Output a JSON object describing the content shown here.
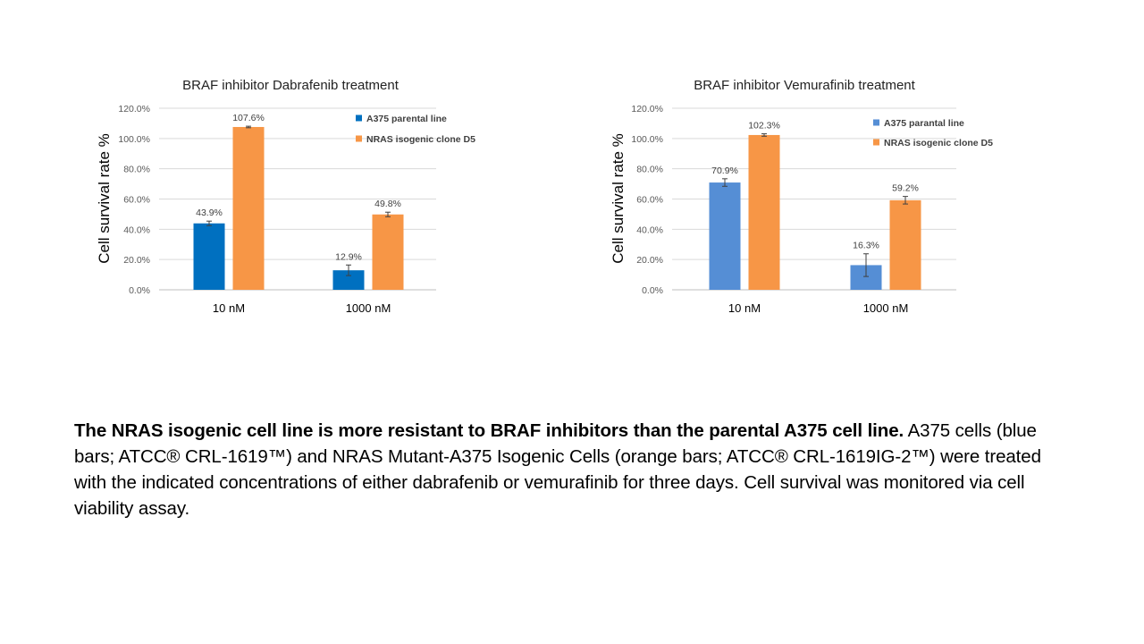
{
  "chart_data": [
    {
      "type": "bar",
      "title": "BRAF inhibitor Dabrafenib treatment",
      "ylabel": "Cell survival rate %",
      "xlabel": "",
      "categories": [
        "10 nM",
        "1000 nM"
      ],
      "ylim": [
        0,
        120
      ],
      "yticks": [
        "0.0%",
        "20.0%",
        "40.0%",
        "60.0%",
        "80.0%",
        "100.0%",
        "120.0%"
      ],
      "legend_position": "top-right",
      "grid": true,
      "series": [
        {
          "name": "A375 parental line",
          "color": "#0070C0",
          "values": [
            43.9,
            12.9
          ],
          "errors": [
            1.5,
            3.5
          ],
          "labels": [
            "43.9%",
            "12.9%"
          ]
        },
        {
          "name": "NRAS isogenic clone D5",
          "color": "#F79646",
          "values": [
            107.6,
            49.8
          ],
          "errors": [
            0.5,
            1.5
          ],
          "labels": [
            "107.6%",
            "49.8%"
          ]
        }
      ]
    },
    {
      "type": "bar",
      "title": "BRAF inhibitor Vemurafinib treatment",
      "ylabel": "Cell survival rate %",
      "xlabel": "",
      "categories": [
        "10 nM",
        "1000 nM"
      ],
      "ylim": [
        0,
        120
      ],
      "yticks": [
        "0.0%",
        "20.0%",
        "40.0%",
        "60.0%",
        "80.0%",
        "100.0%",
        "120.0%"
      ],
      "legend_position": "top-right",
      "grid": true,
      "series": [
        {
          "name": "A375 parantal line",
          "color": "#558ED5",
          "values": [
            70.9,
            16.3
          ],
          "errors": [
            2.5,
            7.5
          ],
          "labels": [
            "70.9%",
            "16.3%"
          ]
        },
        {
          "name": "NRAS isogenic clone D5",
          "color": "#F79646",
          "values": [
            102.3,
            59.2
          ],
          "errors": [
            0.8,
            2.5
          ],
          "labels": [
            "102.3%",
            "59.2%"
          ]
        }
      ]
    }
  ],
  "caption": {
    "bold": "The NRAS isogenic cell line is more resistant to BRAF inhibitors than the parental A375 cell line.",
    "text": " A375 cells (blue bars; ATCC® CRL-1619™) and NRAS Mutant-A375 Isogenic Cells (orange bars; ATCC® CRL-1619IG-2™) were treated with the indicated concentrations of either dabrafenib or vemurafinib for three days. Cell survival was monitored via cell viability assay."
  }
}
